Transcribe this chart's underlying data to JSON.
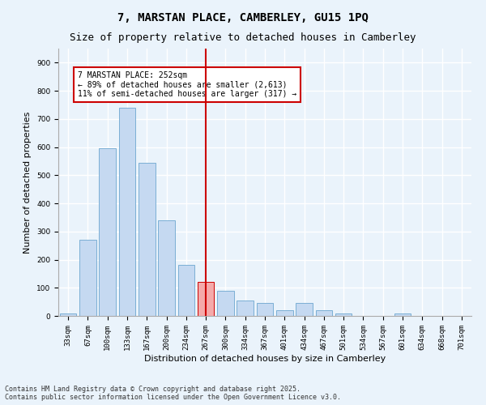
{
  "title1": "7, MARSTAN PLACE, CAMBERLEY, GU15 1PQ",
  "title2": "Size of property relative to detached houses in Camberley",
  "xlabel": "Distribution of detached houses by size in Camberley",
  "ylabel": "Number of detached properties",
  "categories": [
    "33sqm",
    "67sqm",
    "100sqm",
    "133sqm",
    "167sqm",
    "200sqm",
    "234sqm",
    "267sqm",
    "300sqm",
    "334sqm",
    "367sqm",
    "401sqm",
    "434sqm",
    "467sqm",
    "501sqm",
    "534sqm",
    "567sqm",
    "601sqm",
    "634sqm",
    "668sqm",
    "701sqm"
  ],
  "values": [
    10,
    270,
    595,
    740,
    545,
    340,
    180,
    120,
    90,
    55,
    45,
    20,
    45,
    20,
    10,
    0,
    0,
    10,
    0,
    0,
    0
  ],
  "bar_color": "#C5D9F1",
  "bar_edge_color": "#7BAFD4",
  "highlight_bar_color": "#F4AAAA",
  "highlight_bar_edge_color": "#CC0000",
  "highlight_index": 7,
  "vline_color": "#CC0000",
  "annotation_text": "7 MARSTAN PLACE: 252sqm\n← 89% of detached houses are smaller (2,613)\n11% of semi-detached houses are larger (317) →",
  "annotation_box_color": "#FFFFFF",
  "annotation_box_edge": "#CC0000",
  "ylim": [
    0,
    950
  ],
  "yticks": [
    0,
    100,
    200,
    300,
    400,
    500,
    600,
    700,
    800,
    900
  ],
  "footer1": "Contains HM Land Registry data © Crown copyright and database right 2025.",
  "footer2": "Contains public sector information licensed under the Open Government Licence v3.0.",
  "bg_color": "#EAF3FB",
  "plot_bg_color": "#EAF3FB",
  "grid_color": "#FFFFFF",
  "title_fontsize": 10,
  "subtitle_fontsize": 9,
  "tick_fontsize": 6.5,
  "label_fontsize": 8,
  "footer_fontsize": 6
}
